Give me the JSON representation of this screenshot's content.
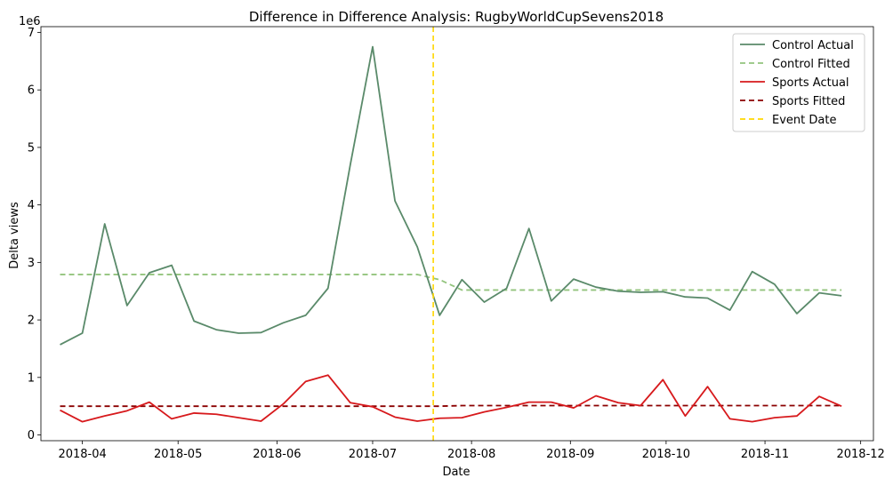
{
  "chart_data": {
    "type": "line",
    "title": "Difference in Difference Analysis: RugbyWorldCupSevens2018",
    "xlabel": "Date",
    "ylabel": "Delta views",
    "offset_label": "1e6",
    "ylim": [
      -0.1,
      7.1
    ],
    "xlim": [
      "2018-03-19",
      "2018-12-05"
    ],
    "x_ticks": [
      "2018-04-01",
      "2018-05-01",
      "2018-06-01",
      "2018-07-01",
      "2018-08-01",
      "2018-09-01",
      "2018-10-01",
      "2018-11-01",
      "2018-12-01"
    ],
    "x_tick_labels": [
      "2018-04",
      "2018-05",
      "2018-06",
      "2018-07",
      "2018-08",
      "2018-09",
      "2018-10",
      "2018-11",
      "2018-12"
    ],
    "y_ticks": [
      0,
      1,
      2,
      3,
      4,
      5,
      6,
      7
    ],
    "y_tick_labels": [
      "0",
      "1",
      "2",
      "3",
      "4",
      "5",
      "6",
      "7"
    ],
    "x": [
      "2018-03-25",
      "2018-04-01",
      "2018-04-08",
      "2018-04-15",
      "2018-04-22",
      "2018-04-29",
      "2018-05-06",
      "2018-05-13",
      "2018-05-20",
      "2018-05-27",
      "2018-06-03",
      "2018-06-10",
      "2018-06-17",
      "2018-06-24",
      "2018-07-01",
      "2018-07-08",
      "2018-07-15",
      "2018-07-22",
      "2018-07-29",
      "2018-08-05",
      "2018-08-12",
      "2018-08-19",
      "2018-08-26",
      "2018-09-02",
      "2018-09-09",
      "2018-09-16",
      "2018-09-23",
      "2018-09-30",
      "2018-10-07",
      "2018-10-14",
      "2018-10-21",
      "2018-10-28",
      "2018-11-04",
      "2018-11-11",
      "2018-11-18",
      "2018-11-25"
    ],
    "series": [
      {
        "name": "Control Actual",
        "color": "#5a8a6a",
        "dash": "solid",
        "values": [
          1.57,
          1.77,
          3.67,
          2.25,
          2.82,
          2.95,
          1.98,
          1.83,
          1.77,
          1.78,
          1.95,
          2.08,
          2.55,
          4.7,
          6.75,
          4.07,
          3.27,
          2.08,
          2.7,
          2.31,
          2.55,
          3.59,
          2.33,
          2.71,
          2.57,
          2.5,
          2.48,
          2.49,
          2.4,
          2.38,
          2.17,
          2.84,
          2.62,
          2.11,
          2.47,
          2.42
        ]
      },
      {
        "name": "Control Fitted",
        "color": "#93c47d",
        "dash": "dashed",
        "values": [
          2.79,
          2.79,
          2.79,
          2.79,
          2.79,
          2.79,
          2.79,
          2.79,
          2.79,
          2.79,
          2.79,
          2.79,
          2.79,
          2.79,
          2.79,
          2.79,
          2.79,
          2.7,
          2.52,
          2.52,
          2.52,
          2.52,
          2.52,
          2.52,
          2.52,
          2.52,
          2.52,
          2.52,
          2.52,
          2.52,
          2.52,
          2.52,
          2.52,
          2.52,
          2.52,
          2.52
        ]
      },
      {
        "name": "Sports Actual",
        "color": "#d7191c",
        "dash": "solid",
        "values": [
          0.43,
          0.23,
          0.33,
          0.42,
          0.57,
          0.28,
          0.38,
          0.36,
          0.3,
          0.24,
          0.54,
          0.93,
          1.04,
          0.56,
          0.49,
          0.31,
          0.24,
          0.29,
          0.3,
          0.4,
          0.48,
          0.57,
          0.57,
          0.47,
          0.68,
          0.56,
          0.51,
          0.96,
          0.33,
          0.84,
          0.28,
          0.23,
          0.3,
          0.33,
          0.67,
          0.5
        ]
      },
      {
        "name": "Sports Fitted",
        "color": "#8b0000",
        "dash": "dashed",
        "values": [
          0.5,
          0.5,
          0.5,
          0.5,
          0.5,
          0.5,
          0.5,
          0.5,
          0.5,
          0.5,
          0.5,
          0.5,
          0.5,
          0.5,
          0.5,
          0.5,
          0.5,
          0.5,
          0.51,
          0.51,
          0.51,
          0.51,
          0.51,
          0.51,
          0.51,
          0.51,
          0.51,
          0.51,
          0.51,
          0.51,
          0.51,
          0.51,
          0.51,
          0.51,
          0.51,
          0.51
        ]
      }
    ],
    "event": {
      "name": "Event Date",
      "date": "2018-07-20",
      "color": "#ffd700",
      "dash": "dashed"
    },
    "legend_position": "top-right",
    "grid": false
  }
}
